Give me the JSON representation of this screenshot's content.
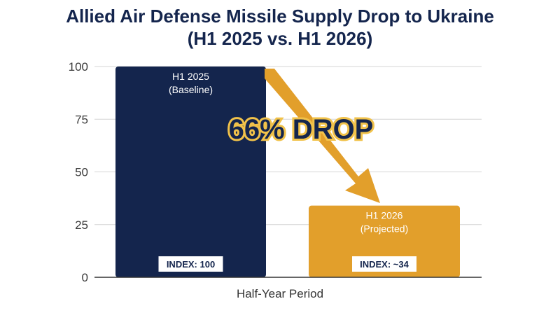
{
  "chart_data": {
    "type": "bar",
    "title_line1": "Allied Air Defense Missile Supply Drop to Ukraine",
    "title_line2": "(H1 2025 vs. H1 2026)",
    "xlabel": "Half-Year Period",
    "ylabel": "",
    "ylim": [
      0,
      100
    ],
    "yticks": [
      "0",
      "25",
      "50",
      "75",
      "100"
    ],
    "grid": true,
    "bars": [
      {
        "line1": "H1 2025",
        "line2": "(Baseline)",
        "value": 100,
        "index_label": "INDEX: 100",
        "color": "#14254d",
        "text_color": "#ffffff"
      },
      {
        "line1": "H1 2026",
        "line2": "(Projected)",
        "value": 34,
        "index_label": "INDEX: ~34",
        "color": "#e29f2b",
        "text_color": "#ffffff"
      }
    ],
    "annotation": {
      "text": "66% DROP",
      "arrow_color": "#e29f2b"
    }
  }
}
